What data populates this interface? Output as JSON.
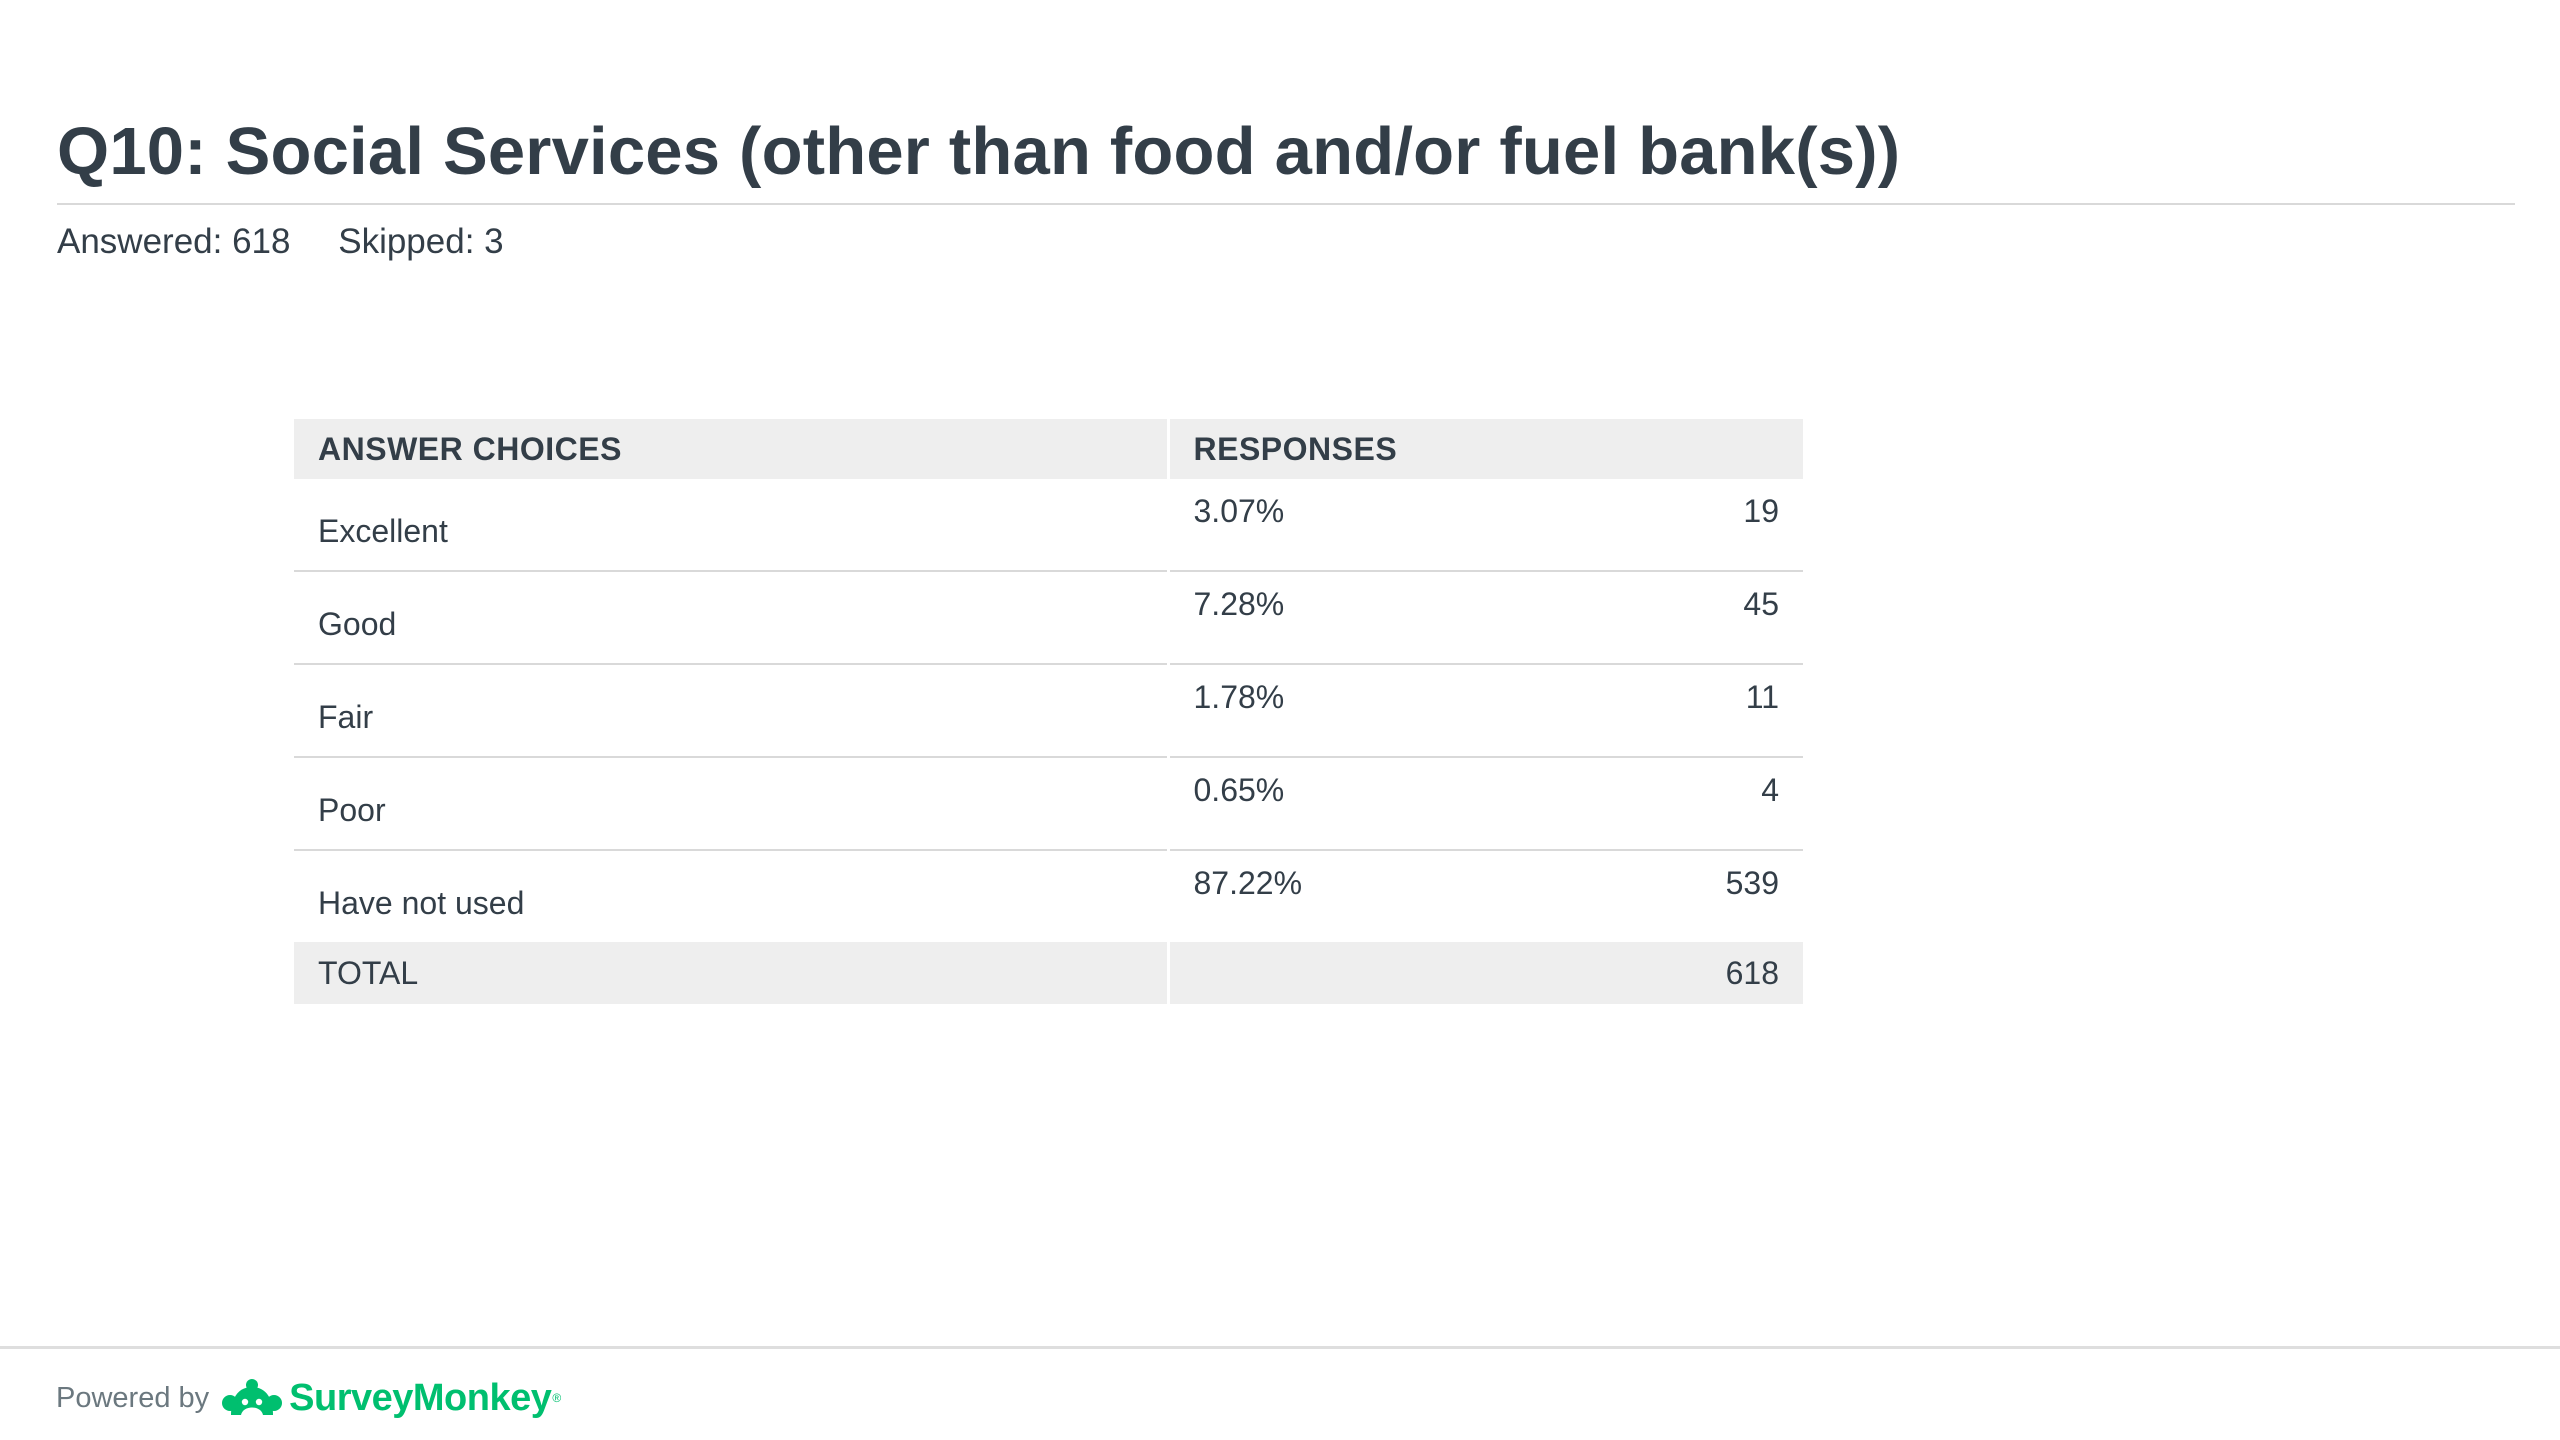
{
  "question": {
    "title": "Q10: Social Services (other than food and/or fuel bank(s))",
    "answered_label": "Answered: 618",
    "skipped_label": "Skipped: 3"
  },
  "table": {
    "headers": {
      "choices": "ANSWER CHOICES",
      "responses": "RESPONSES"
    },
    "rows": [
      {
        "choice": "Excellent",
        "percent": "3.07%",
        "count": "19"
      },
      {
        "choice": "Good",
        "percent": "7.28%",
        "count": "45"
      },
      {
        "choice": "Fair",
        "percent": "1.78%",
        "count": "11"
      },
      {
        "choice": "Poor",
        "percent": "0.65%",
        "count": "4"
      },
      {
        "choice": "Have not used",
        "percent": "87.22%",
        "count": "539"
      }
    ],
    "total": {
      "label": "TOTAL",
      "count": "618"
    }
  },
  "footer": {
    "powered_by": "Powered by",
    "brand": "SurveyMonkey",
    "brand_mark": "®",
    "brand_icon": "surveymonkey-logo-icon",
    "brand_color": "#00bf6f"
  }
}
